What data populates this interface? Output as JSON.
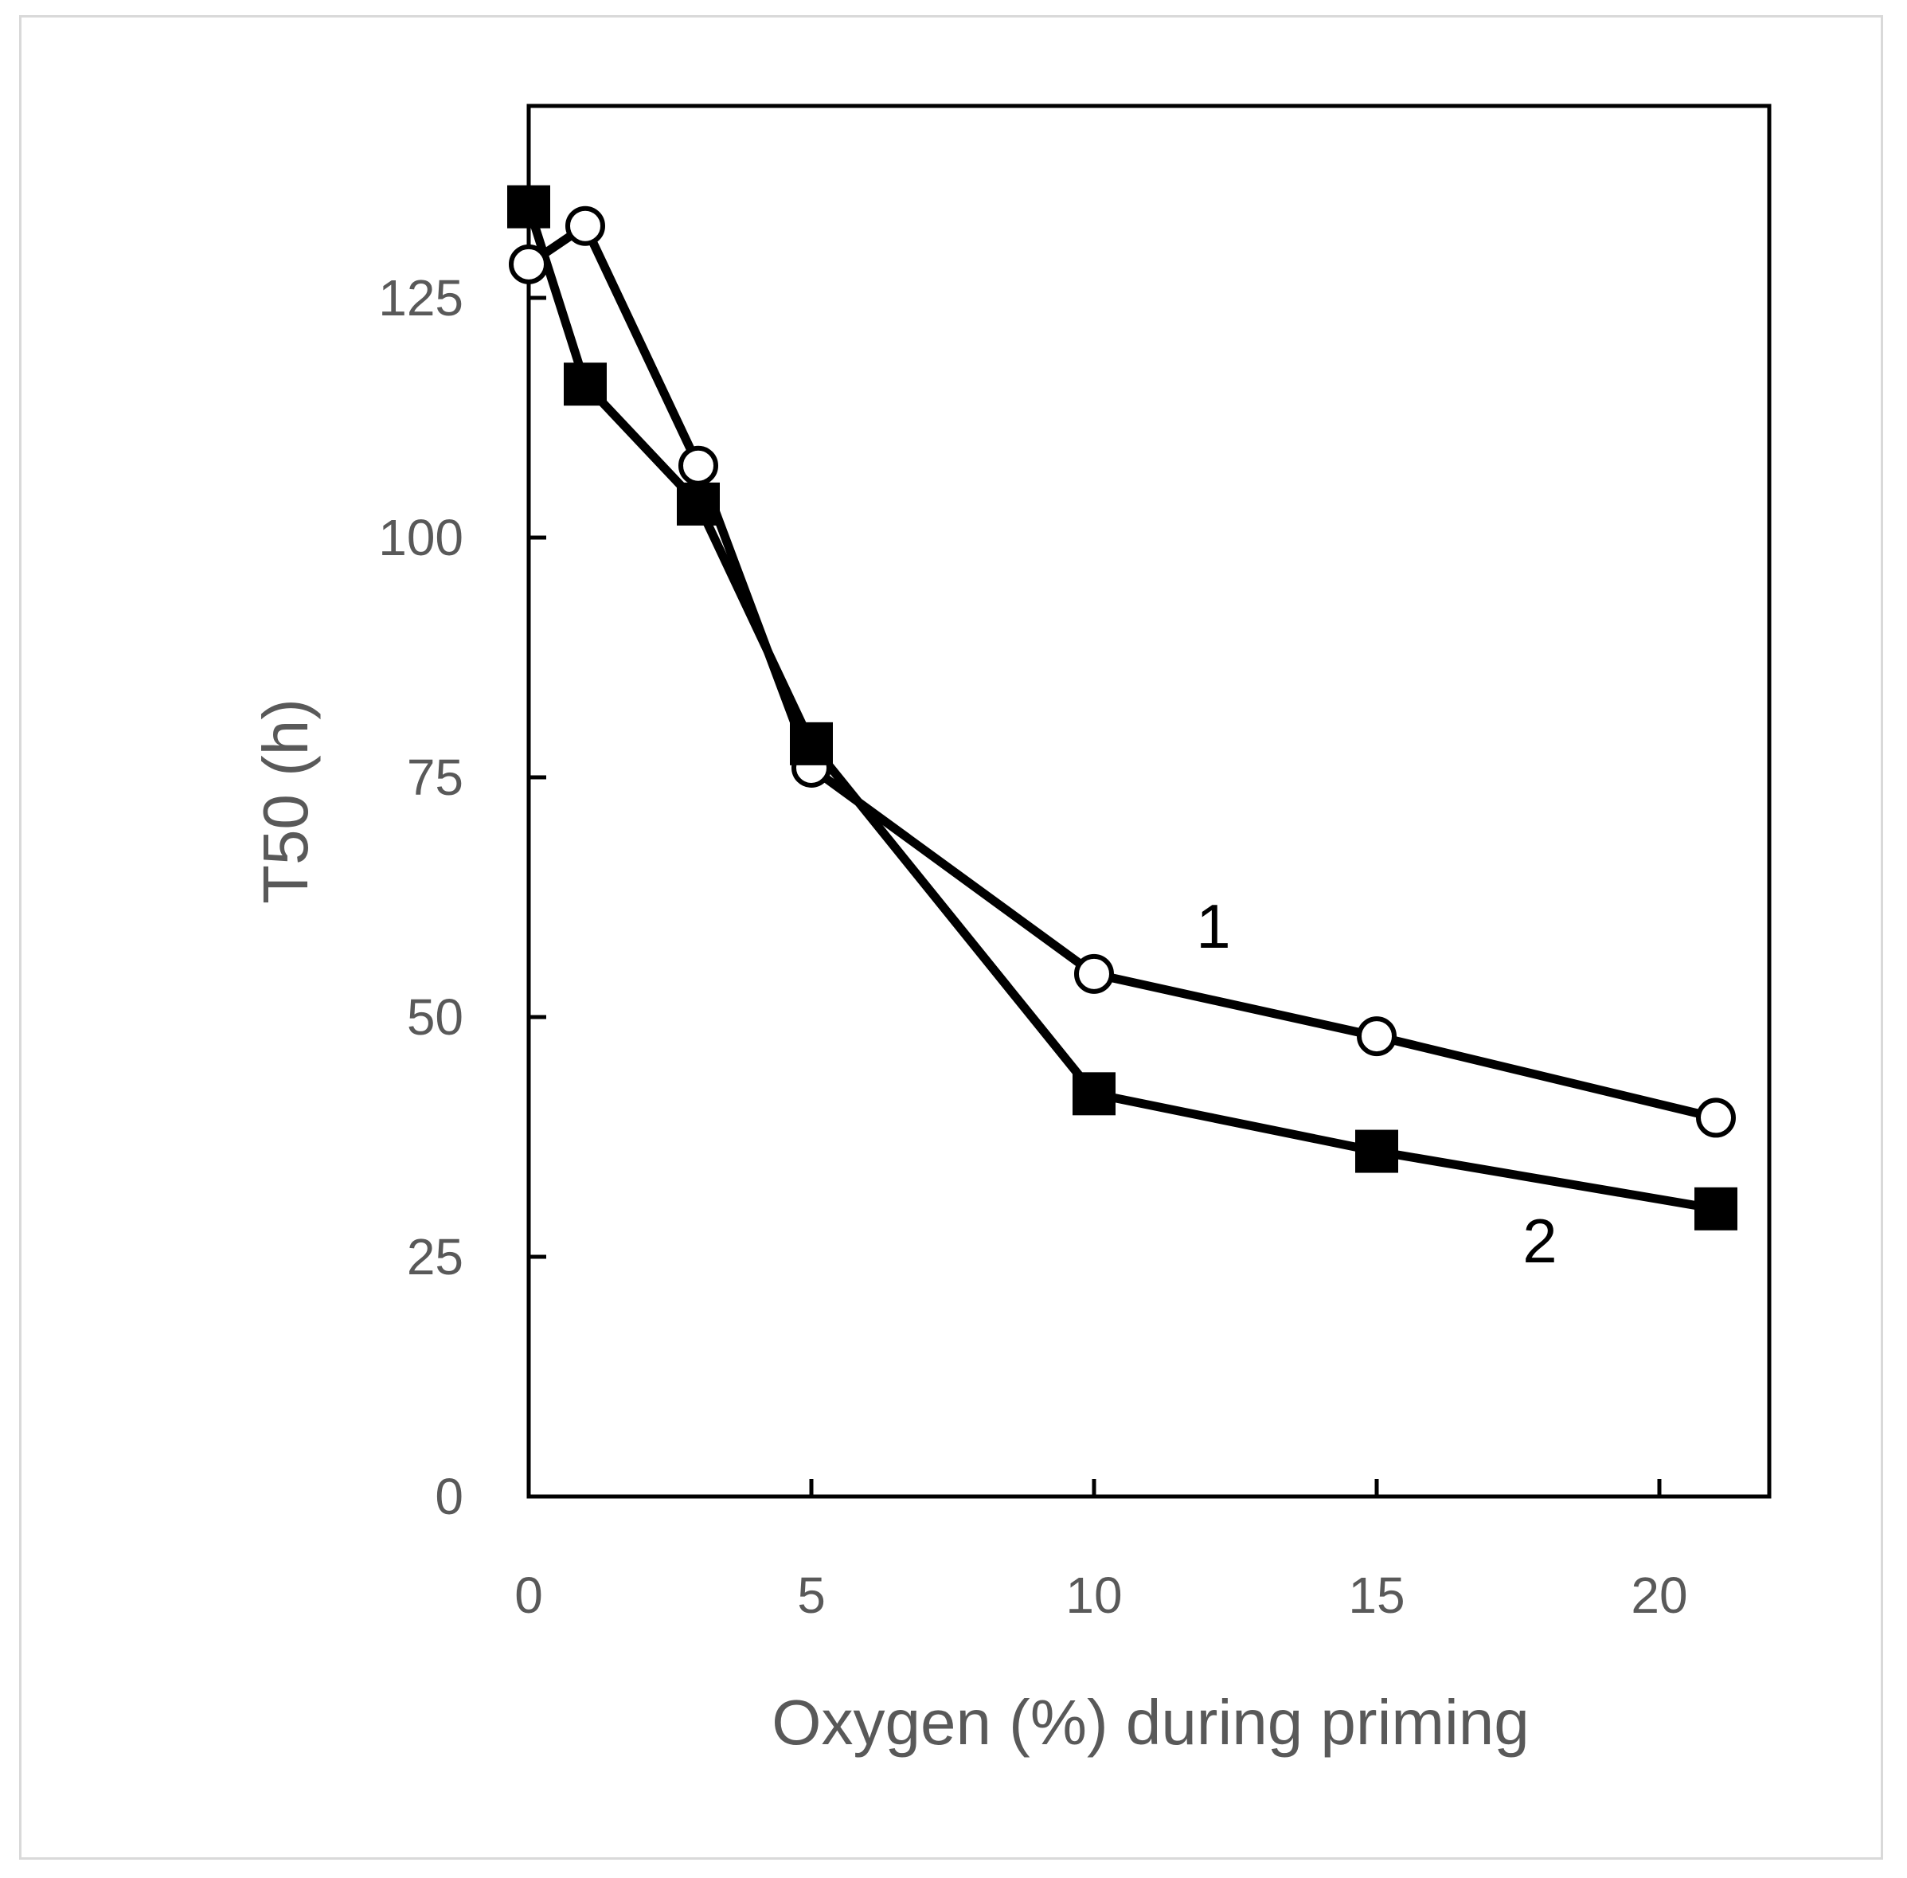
{
  "chart_data": {
    "type": "line",
    "title": "",
    "xlabel": "Oxygen (%) during priming",
    "ylabel": "T50 (h)",
    "xlim": [
      0,
      22
    ],
    "ylim": [
      0,
      145
    ],
    "x_ticks": [
      0,
      5,
      10,
      15,
      20
    ],
    "x_tick_labels": [
      "0",
      "5",
      "10",
      "15",
      "20"
    ],
    "y_ticks": [
      0,
      25,
      50,
      75,
      100,
      125
    ],
    "y_tick_labels": [
      "0",
      "25",
      "50",
      "75",
      "100",
      "125"
    ],
    "grid": false,
    "legend": "none",
    "series": [
      {
        "name": "1",
        "label": "1",
        "marker": "open-circle",
        "x": [
          0,
          1,
          3,
          5,
          10,
          15,
          21
        ],
        "values": [
          128.5,
          132.5,
          107.5,
          76,
          54.5,
          48,
          39.5
        ]
      },
      {
        "name": "2",
        "label": "2",
        "marker": "filled-square",
        "x": [
          0,
          1,
          3,
          5,
          10,
          15,
          21
        ],
        "values": [
          134.5,
          116,
          103.5,
          78.5,
          42,
          36,
          30
        ]
      }
    ]
  }
}
